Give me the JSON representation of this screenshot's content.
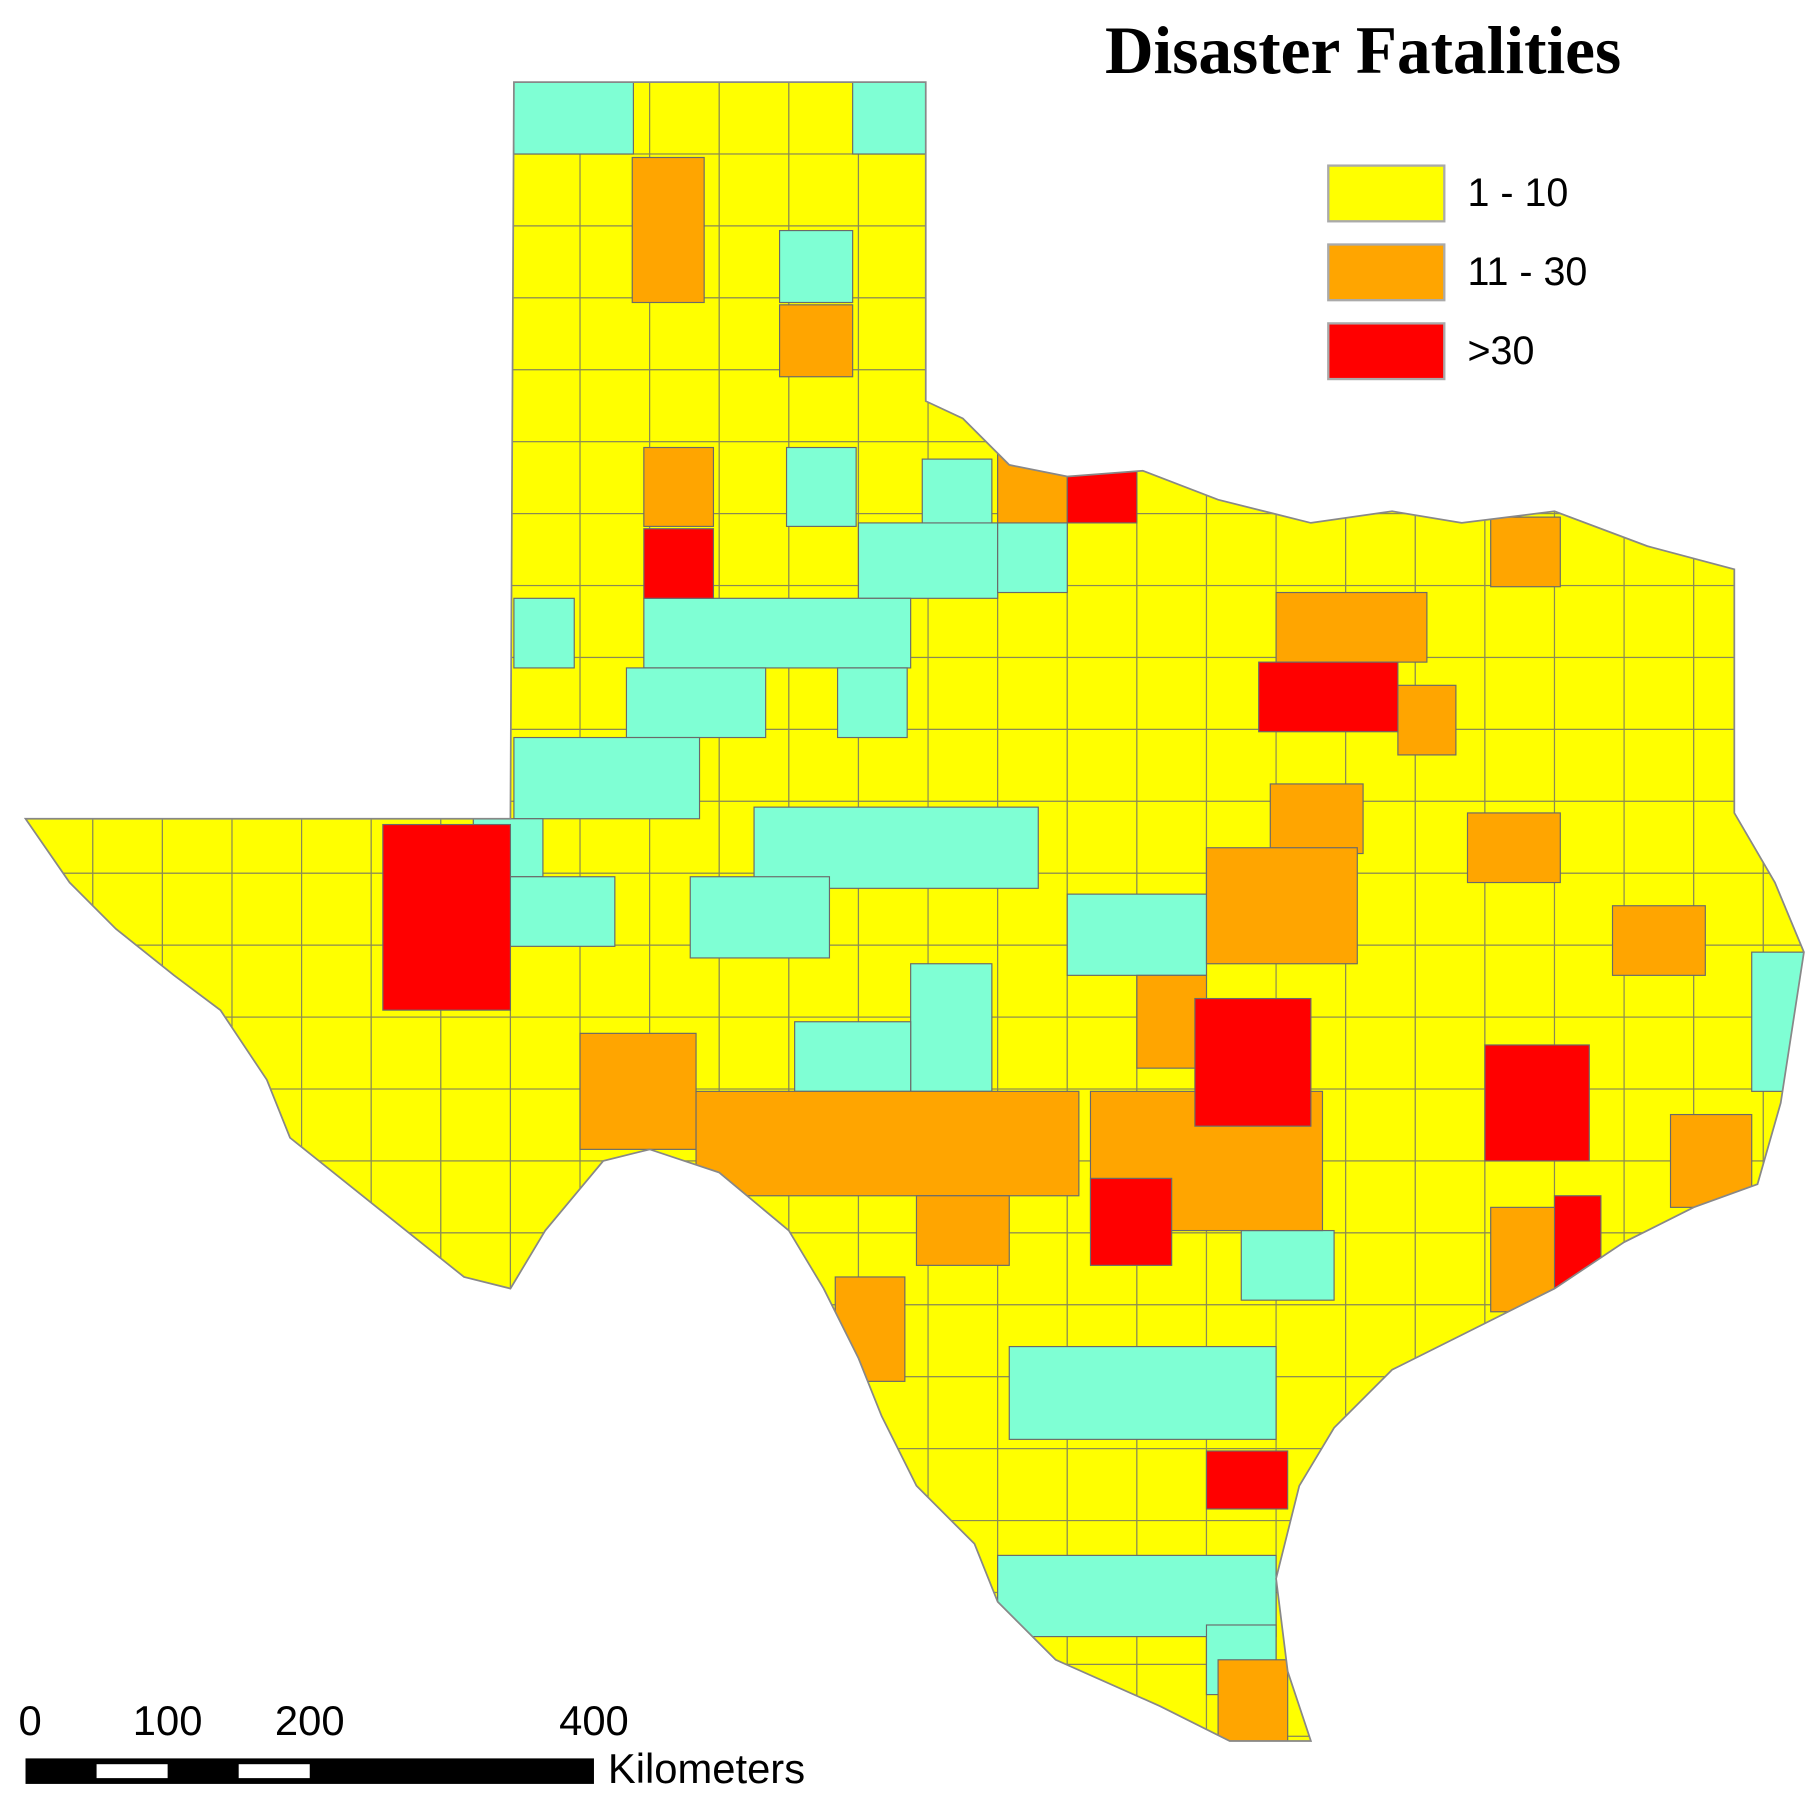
{
  "title": "Disaster Fatalities",
  "legend": [
    {
      "label": "1 - 10",
      "color": "#ffff00"
    },
    {
      "label": "11 - 30",
      "color": "#ffa500"
    },
    {
      "label": ">30",
      "color": "#ff0000"
    }
  ],
  "scale_bar": {
    "ticks": [
      0,
      100,
      200,
      400
    ],
    "unit": "Kilometers"
  }
}
